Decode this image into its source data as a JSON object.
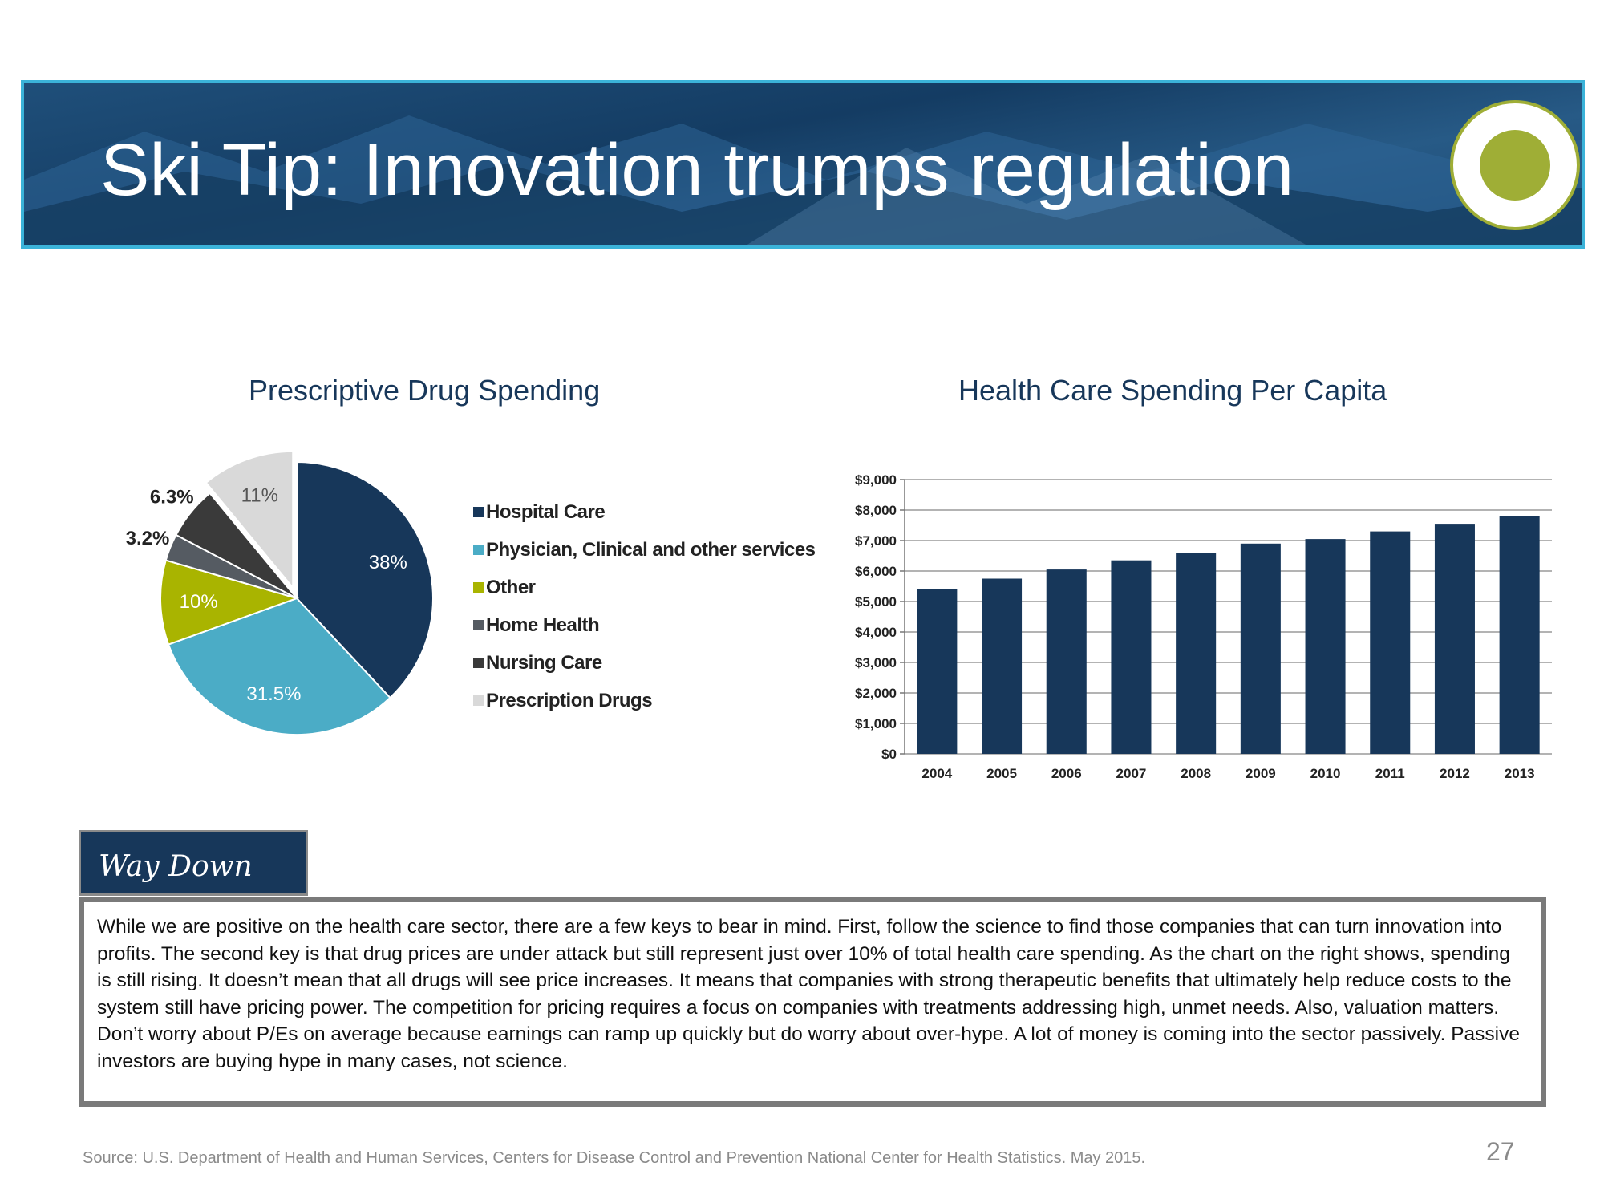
{
  "header": {
    "title": "Ski Tip: Innovation trumps regulation",
    "logo_icon": "green-circle-logo",
    "colors": {
      "banner": "#164a75",
      "border": "#3bb3d9",
      "logo": "#9fae36"
    }
  },
  "chart_data": [
    {
      "type": "pie",
      "title": "Prescriptive Drug Spending",
      "slices": [
        {
          "label": "Hospital Care",
          "value": 38,
          "display": "38%",
          "color": "#17375a"
        },
        {
          "label": "Physician, Clinical and other services",
          "value": 31.5,
          "display": "31.5%",
          "color": "#4bacc6"
        },
        {
          "label": "Other",
          "value": 10,
          "display": "10%",
          "color": "#a9b400"
        },
        {
          "label": "Home Health",
          "value": 3.2,
          "display": "3.2%",
          "color": "#555b62"
        },
        {
          "label": "Nursing Care",
          "value": 6.3,
          "display": "6.3%",
          "color": "#3a3a3a"
        },
        {
          "label": "Prescription Drugs",
          "value": 11,
          "display": "11%",
          "color": "#d9d9d9",
          "exploded": true
        }
      ],
      "legend_position": "right"
    },
    {
      "type": "bar",
      "title": "Health Care Spending Per Capita",
      "categories": [
        "2004",
        "2005",
        "2006",
        "2007",
        "2008",
        "2009",
        "2010",
        "2011",
        "2012",
        "2013"
      ],
      "values": [
        5400,
        5750,
        6050,
        6350,
        6600,
        6900,
        7050,
        7300,
        7550,
        7800
      ],
      "ylim": [
        0,
        9000
      ],
      "yticks": [
        "$0",
        "$1,000",
        "$2,000",
        "$3,000",
        "$4,000",
        "$5,000",
        "$6,000",
        "$7,000",
        "$8,000",
        "$9,000"
      ],
      "grid": true,
      "color": "#17375a"
    }
  ],
  "callout": {
    "heading": "Way Down",
    "body": "While we are positive on the health care sector, there are a few keys to bear in mind. First, follow the science to find those companies that can turn innovation into profits. The second key is that drug prices are under attack but still represent just over 10% of total health care spending. As the chart on the right shows, spending is still rising. It doesn’t mean that all drugs will see price increases. It means that companies with strong therapeutic benefits that ultimately help reduce costs to the system still have pricing power. The competition for pricing requires a focus on companies with treatments addressing high, unmet needs. Also, valuation matters. Don’t worry about P/Es on average because earnings can ramp up quickly but do worry about over-hype. A lot of money is coming into the sector passively. Passive investors are buying hype in many cases, not science."
  },
  "footer": {
    "source": "Source: U.S. Department of Health and Human Services, Centers for Disease Control and Prevention National Center for Health Statistics. May 2015.",
    "page_number": "27"
  }
}
